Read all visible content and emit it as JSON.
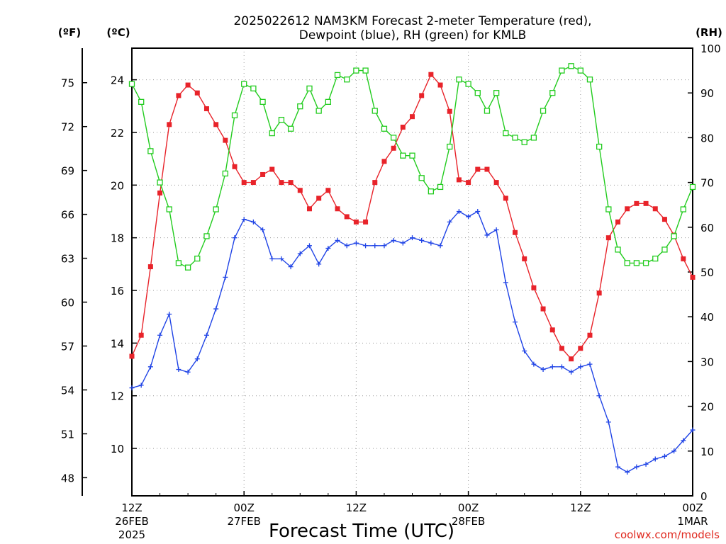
{
  "chart_data": {
    "type": "line",
    "title": "2025022612 NAM3KM Forecast 2-meter Temperature (red),",
    "subtitle": "Dewpoint (blue), RH (green) for KMLB",
    "xlabel": "Forecast Time (UTC)",
    "credit": "coolwx.com/models",
    "units": {
      "fahrenheit": "(ºF)",
      "celsius": "(ºC)",
      "rh": "(RH)"
    },
    "x_ticks": [
      {
        "hour": 0,
        "label": "12Z",
        "date": "26FEB",
        "year": "2025"
      },
      {
        "hour": 12,
        "label": "00Z",
        "date": "27FEB",
        "year": ""
      },
      {
        "hour": 24,
        "label": "12Z",
        "date": "",
        "year": ""
      },
      {
        "hour": 36,
        "label": "00Z",
        "date": "28FEB",
        "year": ""
      },
      {
        "hour": 48,
        "label": "12Z",
        "date": "",
        "year": ""
      },
      {
        "hour": 60,
        "label": "00Z",
        "date": "1MAR",
        "year": ""
      }
    ],
    "celsius_ticks": [
      10,
      12,
      14,
      16,
      18,
      20,
      22,
      24
    ],
    "fahrenheit_ticks": [
      48,
      51,
      54,
      57,
      60,
      63,
      66,
      69,
      72,
      75
    ],
    "rh_ticks": [
      0,
      10,
      20,
      30,
      40,
      50,
      60,
      70,
      80,
      90,
      100
    ],
    "celsius_range": [
      8.2,
      25.2
    ],
    "rh_range": [
      0,
      100
    ],
    "x_range": [
      0,
      60
    ],
    "grid": true,
    "series": [
      {
        "name": "Temperature",
        "color": "#e8232a",
        "marker": "filled-square",
        "values": [
          13.5,
          14.3,
          16.9,
          19.7,
          22.3,
          23.4,
          23.8,
          23.5,
          22.9,
          22.3,
          21.7,
          20.7,
          20.1,
          20.1,
          20.4,
          20.6,
          20.1,
          20.1,
          19.8,
          19.1,
          19.5,
          19.8,
          19.1,
          18.8,
          18.6,
          18.6,
          20.1,
          20.9,
          21.4,
          22.2,
          22.6,
          23.4,
          24.2,
          23.8,
          22.8,
          20.2,
          20.1,
          20.6,
          20.6,
          20.1,
          19.5,
          18.2,
          17.2,
          16.1,
          15.3,
          14.5,
          13.8,
          13.4,
          13.8,
          14.3,
          15.9,
          18.0,
          18.6,
          19.1,
          19.3,
          19.3,
          19.1,
          18.7,
          18.1,
          17.2,
          16.5
        ]
      },
      {
        "name": "Dewpoint",
        "color": "#1f43e6",
        "marker": "plus",
        "values": [
          12.3,
          12.4,
          13.1,
          14.3,
          15.1,
          13.0,
          12.9,
          13.4,
          14.3,
          15.3,
          16.5,
          18.0,
          18.7,
          18.6,
          18.3,
          17.2,
          17.2,
          16.9,
          17.4,
          17.7,
          17.0,
          17.6,
          17.9,
          17.7,
          17.8,
          17.7,
          17.7,
          17.7,
          17.9,
          17.8,
          18.0,
          17.9,
          17.8,
          17.7,
          18.6,
          19.0,
          18.8,
          19.0,
          18.1,
          18.3,
          16.3,
          14.8,
          13.7,
          13.2,
          13.0,
          13.1,
          13.1,
          12.9,
          13.1,
          13.2,
          12.0,
          11.0,
          9.3,
          9.1,
          9.3,
          9.4,
          9.6,
          9.7,
          9.9,
          10.3,
          10.7
        ]
      },
      {
        "name": "RH",
        "color": "#22cc1e",
        "marker": "open-square",
        "values": [
          92,
          88,
          77,
          70,
          64,
          52,
          51,
          53,
          58,
          64,
          72,
          85,
          92,
          91,
          88,
          81,
          84,
          82,
          87,
          91,
          86,
          88,
          94,
          93,
          95,
          95,
          86,
          82,
          80,
          76,
          76,
          71,
          68,
          69,
          78,
          93,
          92,
          90,
          86,
          90,
          81,
          80,
          79,
          80,
          86,
          90,
          95,
          96,
          95,
          93,
          78,
          64,
          55,
          52,
          52,
          52,
          53,
          55,
          58,
          64,
          69
        ]
      }
    ]
  }
}
